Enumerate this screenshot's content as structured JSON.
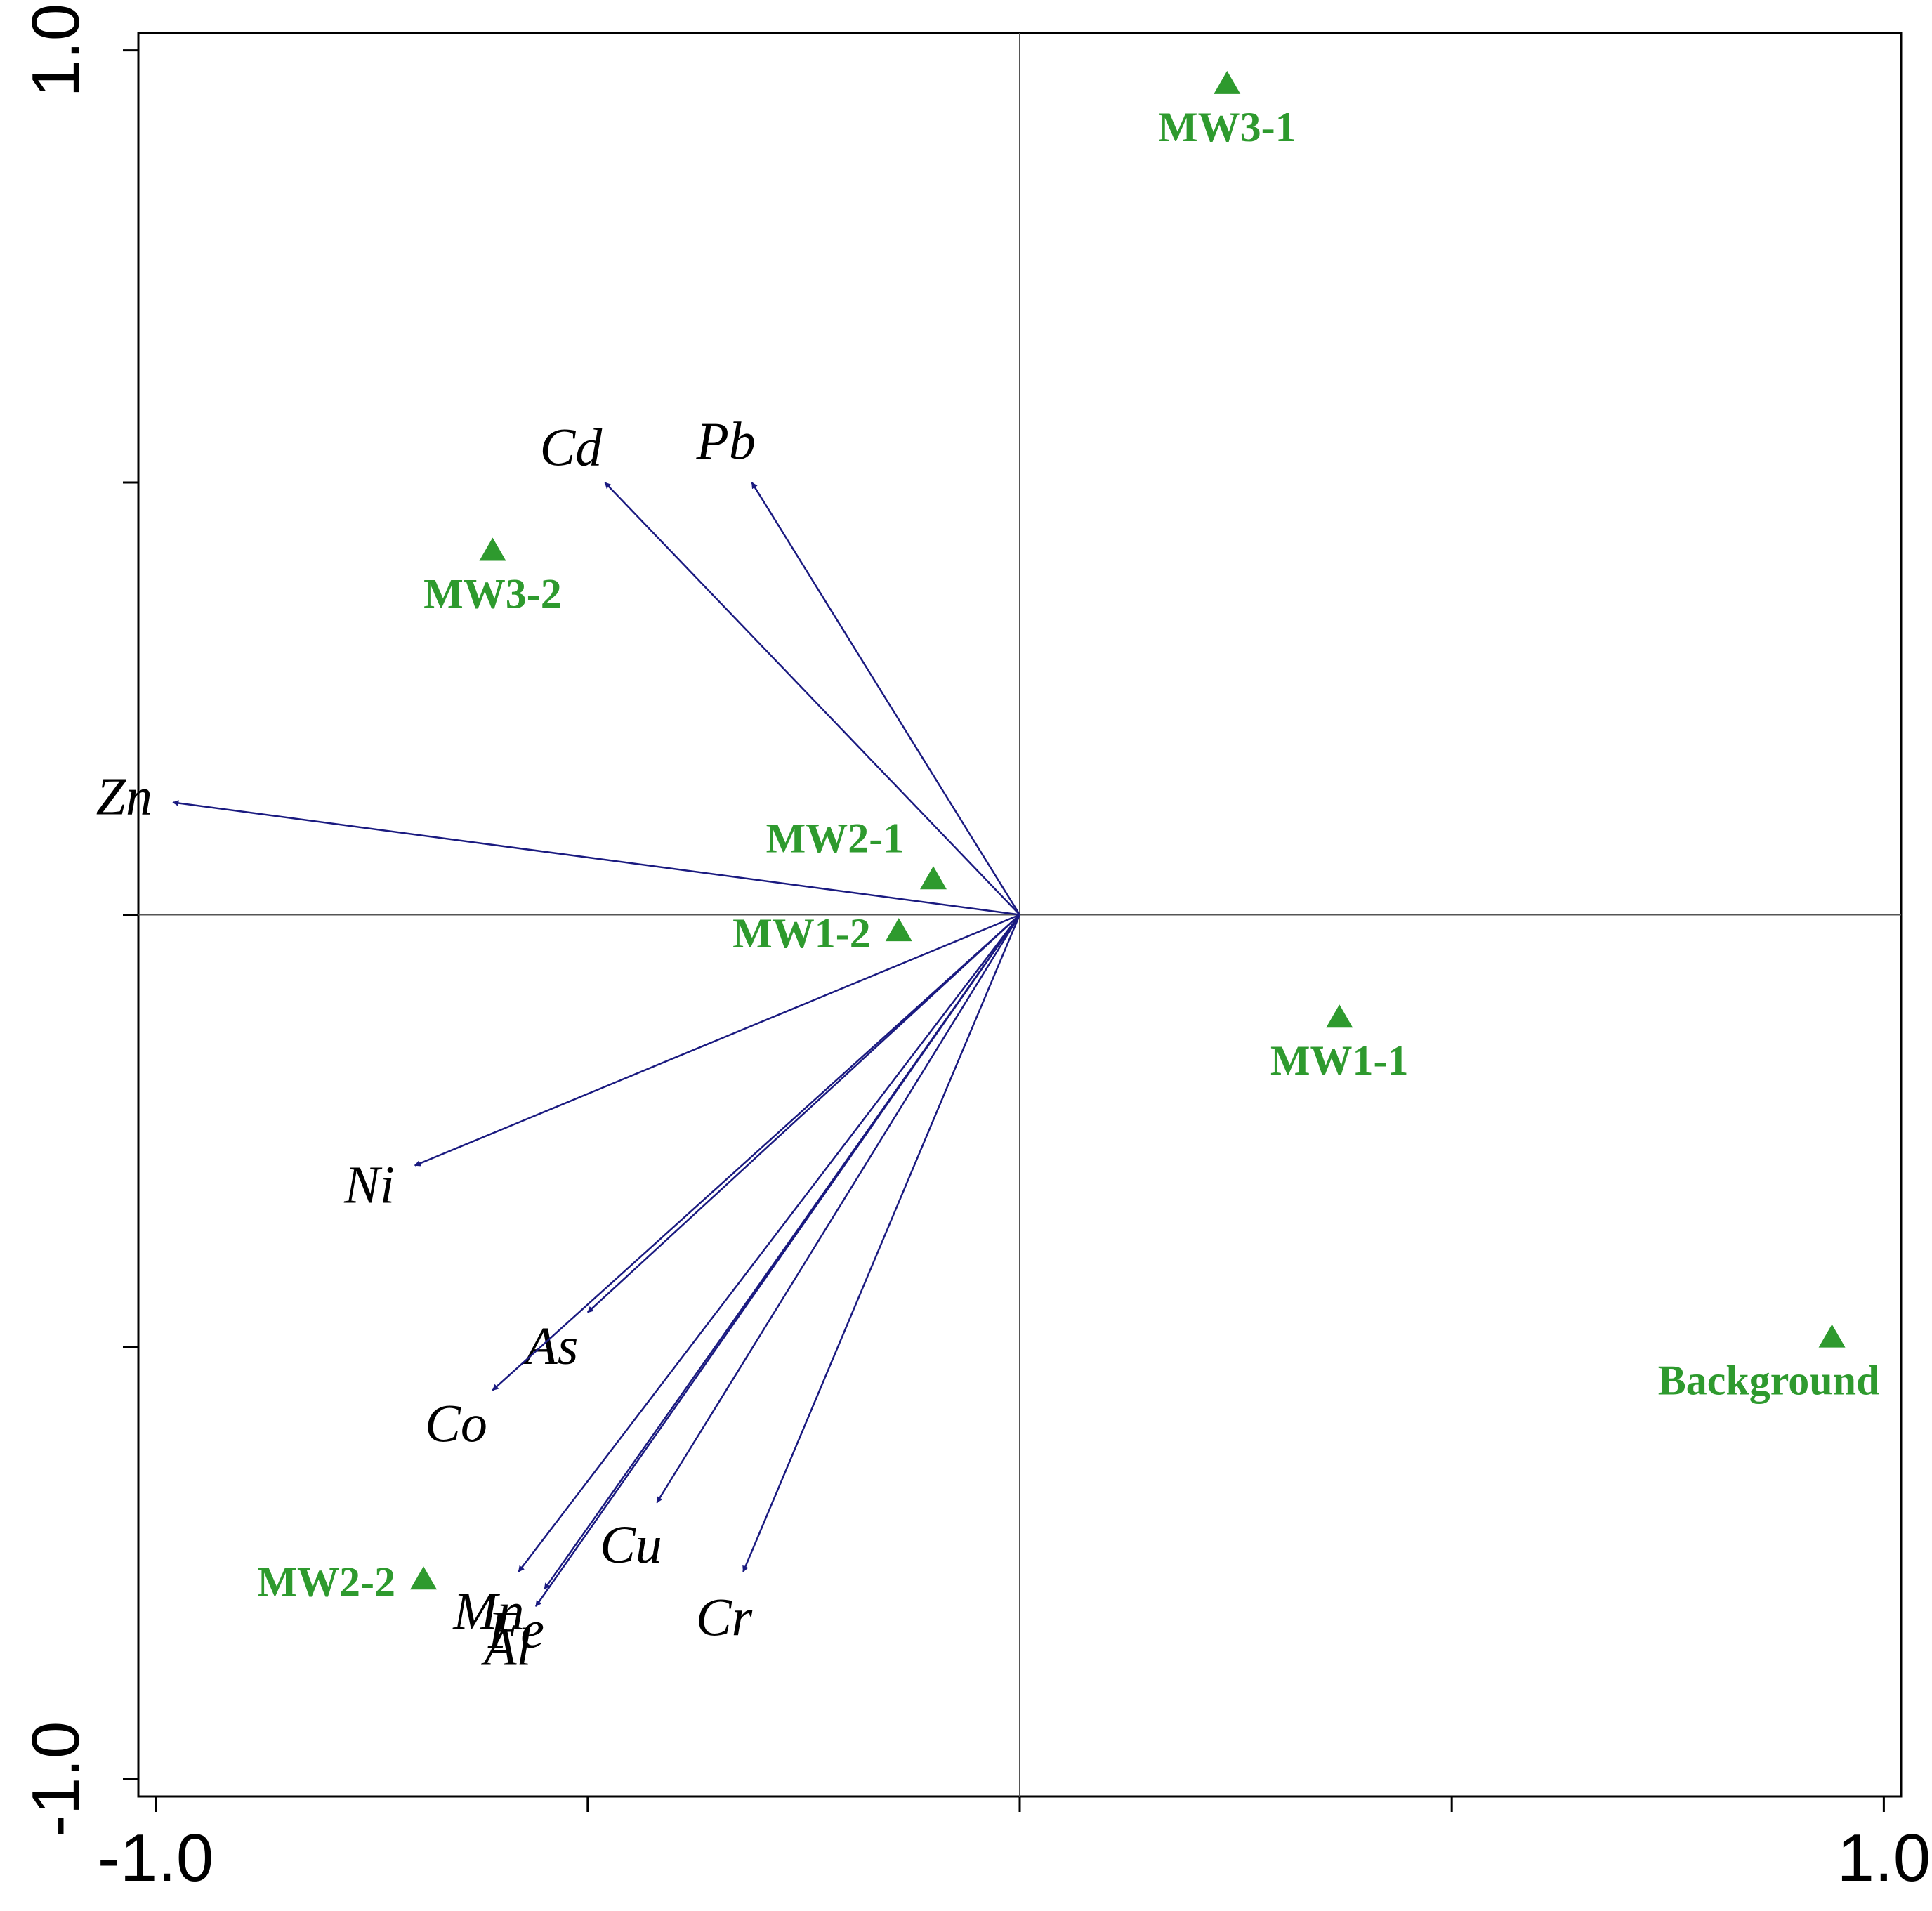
{
  "chart_data": {
    "type": "biplot",
    "title": "",
    "xlabel": "",
    "ylabel": "",
    "xlim": [
      -1.02,
      1.02
    ],
    "ylim": [
      -1.02,
      1.02
    ],
    "x_tick_values": [
      -1.0,
      -0.5,
      0,
      0.5,
      1.0
    ],
    "y_tick_values": [
      -1.0,
      -0.5,
      0,
      0.5,
      1.0
    ],
    "x_tick_labels": [
      {
        "value": -1.0,
        "label": "-1.0"
      },
      {
        "value": 1.0,
        "label": "1.0"
      }
    ],
    "y_tick_labels": [
      {
        "value": 1.0,
        "label": "1.0"
      },
      {
        "value": -1.0,
        "label": "-1.0"
      }
    ],
    "reference_lines": {
      "x": 0,
      "y": 0
    },
    "vectors": [
      {
        "label": "Cd",
        "x": -0.48,
        "y": 0.5
      },
      {
        "label": "Pb",
        "x": -0.31,
        "y": 0.5
      },
      {
        "label": "Zn",
        "x": -0.98,
        "y": 0.13
      },
      {
        "label": "Ni",
        "x": -0.7,
        "y": -0.29
      },
      {
        "label": "As",
        "x": -0.5,
        "y": -0.46
      },
      {
        "label": "Co",
        "x": -0.61,
        "y": -0.55
      },
      {
        "label": "Mn",
        "x": -0.58,
        "y": -0.76
      },
      {
        "label": "Fe",
        "x": -0.55,
        "y": -0.78
      },
      {
        "label": "Al",
        "x": -0.56,
        "y": -0.8
      },
      {
        "label": "Cu",
        "x": -0.42,
        "y": -0.68
      },
      {
        "label": "Cr",
        "x": -0.32,
        "y": -0.76
      }
    ],
    "sites": [
      {
        "label": "MW3-1",
        "x": 0.24,
        "y": 0.96
      },
      {
        "label": "MW3-2",
        "x": -0.61,
        "y": 0.42
      },
      {
        "label": "MW2-1",
        "x": -0.1,
        "y": 0.04
      },
      {
        "label": "MW1-2",
        "x": -0.14,
        "y": -0.02
      },
      {
        "label": "MW1-1",
        "x": 0.37,
        "y": -0.12
      },
      {
        "label": "Background",
        "x": 0.94,
        "y": -0.49
      },
      {
        "label": "MW2-2",
        "x": -0.69,
        "y": -0.77
      }
    ],
    "colors": {
      "vector": "#1a1a80",
      "site": "#2e9a2e",
      "axis": "#000000",
      "reference_line": "#555555"
    }
  }
}
